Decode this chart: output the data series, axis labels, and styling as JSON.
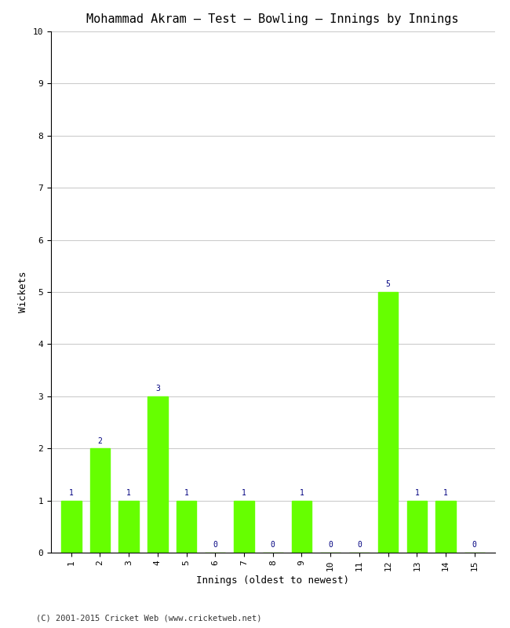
{
  "title": "Mohammad Akram – Test – Bowling – Innings by Innings",
  "xlabel": "Innings (oldest to newest)",
  "ylabel": "Wickets",
  "innings": [
    1,
    2,
    3,
    4,
    5,
    6,
    7,
    8,
    9,
    10,
    11,
    12,
    13,
    14,
    15
  ],
  "wickets": [
    1,
    2,
    1,
    3,
    1,
    0,
    1,
    0,
    1,
    0,
    0,
    5,
    1,
    1,
    0
  ],
  "bar_color": "#66ff00",
  "bar_edge_color": "#66ff00",
  "label_color": "#000080",
  "ylim": [
    0,
    10
  ],
  "yticks": [
    0,
    1,
    2,
    3,
    4,
    5,
    6,
    7,
    8,
    9,
    10
  ],
  "background_color": "#ffffff",
  "grid_color": "#cccccc",
  "title_fontsize": 11,
  "axis_label_fontsize": 9,
  "tick_fontsize": 8,
  "value_label_fontsize": 7,
  "footer_text": "(C) 2001-2015 Cricket Web (www.cricketweb.net)",
  "footer_fontsize": 7.5
}
